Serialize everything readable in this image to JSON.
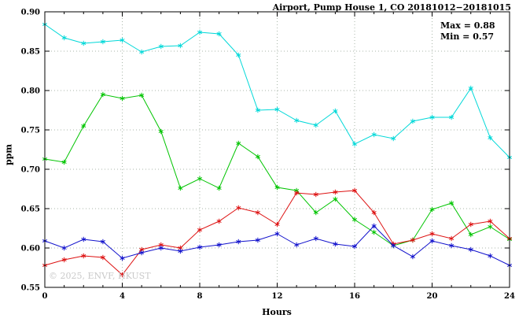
{
  "title": "Airport, Pump House 1, CO 20181012−20181015",
  "annotation": {
    "stats_text": "Max = 0.88\nMin = 0.57"
  },
  "watermark": "© 2025, ENVF, HKUST",
  "chart_data": {
    "type": "line",
    "title": "Airport, Pump House 1, CO 20181012−20181015",
    "xlabel": "Hours",
    "ylabel": "ppm",
    "xlim": [
      0,
      24
    ],
    "ylim": [
      0.55,
      0.9
    ],
    "xticks": [
      0,
      4,
      8,
      12,
      16,
      20,
      24
    ],
    "yticks": [
      0.55,
      0.6,
      0.65,
      0.7,
      0.75,
      0.8,
      0.85,
      0.9
    ],
    "grid": true,
    "legend": "none",
    "marker": "asterisk",
    "stats": {
      "max": 0.88,
      "min": 0.57
    },
    "x": [
      0,
      1,
      2,
      3,
      4,
      5,
      6,
      7,
      8,
      9,
      10,
      11,
      12,
      13,
      14,
      15,
      16,
      17,
      18,
      19,
      20,
      21,
      22,
      23,
      24
    ],
    "series": [
      {
        "name": "series-cyan",
        "color": "#00d8d8",
        "values": [
          0.884,
          0.867,
          0.86,
          0.862,
          0.864,
          0.849,
          0.856,
          0.857,
          0.874,
          0.872,
          0.845,
          0.775,
          0.776,
          0.762,
          0.756,
          0.774,
          0.732,
          0.744,
          0.739,
          0.761,
          0.766,
          0.766,
          0.803,
          0.74,
          0.715
        ]
      },
      {
        "name": "series-green",
        "color": "#00c400",
        "values": [
          0.713,
          0.709,
          0.755,
          0.795,
          0.79,
          0.794,
          0.748,
          0.676,
          0.688,
          0.676,
          0.733,
          0.716,
          0.677,
          0.673,
          0.645,
          0.662,
          0.636,
          0.62,
          0.603,
          0.61,
          0.649,
          0.657,
          0.617,
          0.627,
          0.611
        ]
      },
      {
        "name": "series-red",
        "color": "#dd1111",
        "values": [
          0.578,
          0.585,
          0.59,
          0.588,
          0.566,
          0.598,
          0.604,
          0.6,
          0.623,
          0.634,
          0.651,
          0.645,
          0.63,
          0.67,
          0.668,
          0.671,
          0.673,
          0.645,
          0.605,
          0.61,
          0.618,
          0.612,
          0.63,
          0.634,
          0.612
        ]
      },
      {
        "name": "series-blue",
        "color": "#1111cc",
        "values": [
          0.609,
          0.6,
          0.611,
          0.608,
          0.587,
          0.594,
          0.6,
          0.596,
          0.601,
          0.604,
          0.608,
          0.61,
          0.618,
          0.604,
          0.612,
          0.605,
          0.602,
          0.628,
          0.603,
          0.589,
          0.609,
          0.603,
          0.598,
          0.59,
          0.578
        ]
      }
    ]
  }
}
